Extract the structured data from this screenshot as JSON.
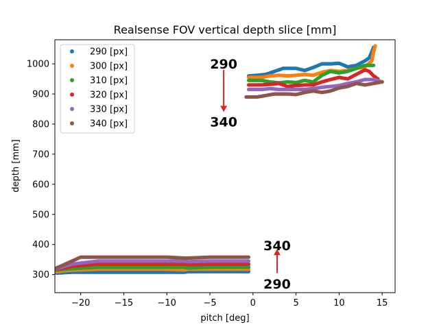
{
  "chart_data": {
    "type": "scatter",
    "title": "Realsense FOV vertical depth slice [mm]",
    "xlabel": "pitch [deg]",
    "ylabel": "depth [mm]",
    "xlim": [
      -23,
      16.5
    ],
    "ylim": [
      240,
      1080
    ],
    "xticks": [
      -20,
      -15,
      -10,
      -5,
      0,
      5,
      10,
      15
    ],
    "xtick_labels": [
      "−20",
      "−15",
      "−10",
      "−5",
      "0",
      "5",
      "10",
      "15"
    ],
    "yticks": [
      300,
      400,
      500,
      600,
      700,
      800,
      900,
      1000
    ],
    "grid": false,
    "legend": "top-left",
    "series": [
      {
        "name": "290 [px]",
        "color": "#1f77b4",
        "segments": [
          [
            [
              -22.8,
              305
            ],
            [
              -21,
              308
            ],
            [
              -18,
              308
            ],
            [
              -15,
              308
            ],
            [
              -12,
              308
            ],
            [
              -10,
              308
            ],
            [
              -8,
              308
            ],
            [
              -7.5,
              310
            ],
            [
              -5,
              310
            ],
            [
              -3,
              310
            ],
            [
              -0.5,
              310
            ]
          ],
          [
            [
              -0.5,
              960
            ],
            [
              0.5,
              962
            ],
            [
              1.5,
              965
            ],
            [
              2.5,
              975
            ],
            [
              3.5,
              985
            ],
            [
              5,
              985
            ],
            [
              6,
              978
            ],
            [
              7,
              988
            ],
            [
              8,
              1000
            ],
            [
              9,
              1000
            ],
            [
              10,
              1002
            ],
            [
              11,
              990
            ],
            [
              12,
              995
            ],
            [
              13,
              1010
            ],
            [
              13.5,
              1020
            ],
            [
              13.8,
              1040
            ],
            [
              14,
              1055
            ]
          ]
        ]
      },
      {
        "name": "300 [px]",
        "color": "#ff7f0e",
        "segments": [
          [
            [
              -22.8,
              310
            ],
            [
              -21,
              315
            ],
            [
              -18,
              318
            ],
            [
              -15,
              318
            ],
            [
              -12,
              318
            ],
            [
              -10,
              318
            ],
            [
              -8,
              316
            ],
            [
              -7.5,
              318
            ],
            [
              -5,
              318
            ],
            [
              -3,
              318
            ],
            [
              -0.5,
              318
            ]
          ],
          [
            [
              -0.5,
              955
            ],
            [
              1,
              955
            ],
            [
              2,
              960
            ],
            [
              3,
              962
            ],
            [
              4,
              960
            ],
            [
              5,
              962
            ],
            [
              6,
              965
            ],
            [
              7,
              962
            ],
            [
              8,
              972
            ],
            [
              9,
              978
            ],
            [
              10,
              975
            ],
            [
              11,
              978
            ],
            [
              12,
              985
            ],
            [
              13,
              990
            ],
            [
              13.8,
              1010
            ],
            [
              14,
              1040
            ],
            [
              14.2,
              1060
            ]
          ]
        ]
      },
      {
        "name": "310 [px]",
        "color": "#2ca02c",
        "segments": [
          [
            [
              -22.8,
              315
            ],
            [
              -21,
              320
            ],
            [
              -18,
              325
            ],
            [
              -15,
              325
            ],
            [
              -12,
              325
            ],
            [
              -10,
              325
            ],
            [
              -8,
              325
            ],
            [
              -7.5,
              322
            ],
            [
              -5,
              325
            ],
            [
              -3,
              325
            ],
            [
              -0.5,
              325
            ]
          ],
          [
            [
              -0.5,
              945
            ],
            [
              1,
              945
            ],
            [
              2,
              940
            ],
            [
              3,
              937
            ],
            [
              4,
              940
            ],
            [
              5,
              938
            ],
            [
              6,
              945
            ],
            [
              7,
              940
            ],
            [
              8,
              962
            ],
            [
              9,
              975
            ],
            [
              10,
              970
            ],
            [
              11,
              975
            ],
            [
              12,
              985
            ],
            [
              13,
              995
            ],
            [
              14,
              995
            ]
          ]
        ]
      },
      {
        "name": "320 [px]",
        "color": "#d62728",
        "segments": [
          [
            [
              -22.8,
              318
            ],
            [
              -21,
              328
            ],
            [
              -18,
              335
            ],
            [
              -15,
              335
            ],
            [
              -12,
              335
            ],
            [
              -10,
              335
            ],
            [
              -8,
              335
            ],
            [
              -7.5,
              333
            ],
            [
              -5,
              335
            ],
            [
              -3,
              335
            ],
            [
              -0.5,
              335
            ]
          ],
          [
            [
              -0.5,
              930
            ],
            [
              1,
              930
            ],
            [
              2,
              932
            ],
            [
              3,
              935
            ],
            [
              4,
              925
            ],
            [
              5,
              928
            ],
            [
              6,
              930
            ],
            [
              7,
              930
            ],
            [
              8,
              940
            ],
            [
              9,
              948
            ],
            [
              10,
              955
            ],
            [
              11,
              950
            ],
            [
              12,
              965
            ],
            [
              13,
              980
            ],
            [
              13.5,
              975
            ],
            [
              14,
              960
            ],
            [
              14.5,
              950
            ]
          ]
        ]
      },
      {
        "name": "330 [px]",
        "color": "#9467bd",
        "segments": [
          [
            [
              -22.8,
              320
            ],
            [
              -21,
              335
            ],
            [
              -18,
              345
            ],
            [
              -15,
              345
            ],
            [
              -12,
              345
            ],
            [
              -10,
              345
            ],
            [
              -8,
              345
            ],
            [
              -7.5,
              343
            ],
            [
              -5,
              345
            ],
            [
              -3,
              345
            ],
            [
              -0.5,
              345
            ]
          ],
          [
            [
              -0.5,
              915
            ],
            [
              1,
              915
            ],
            [
              2,
              918
            ],
            [
              3,
              915
            ],
            [
              4,
              915
            ],
            [
              5,
              915
            ],
            [
              6,
              915
            ],
            [
              7,
              918
            ],
            [
              8,
              922
            ],
            [
              9,
              925
            ],
            [
              10,
              928
            ],
            [
              11,
              935
            ],
            [
              12,
              940
            ],
            [
              13,
              948
            ],
            [
              14,
              948
            ],
            [
              15,
              940
            ]
          ]
        ]
      },
      {
        "name": "340 [px]",
        "color": "#8c564b",
        "segments": [
          [
            [
              -22.8,
              322
            ],
            [
              -21,
              345
            ],
            [
              -20,
              358
            ],
            [
              -18,
              358
            ],
            [
              -15,
              358
            ],
            [
              -12,
              358
            ],
            [
              -10,
              358
            ],
            [
              -8,
              355
            ],
            [
              -7.5,
              355
            ],
            [
              -5,
              358
            ],
            [
              -3,
              358
            ],
            [
              -0.5,
              358
            ]
          ],
          [
            [
              -0.8,
              890
            ],
            [
              0.5,
              890
            ],
            [
              1.5,
              895
            ],
            [
              2.5,
              900
            ],
            [
              4,
              900
            ],
            [
              5,
              898
            ],
            [
              6,
              905
            ],
            [
              7,
              910
            ],
            [
              8,
              905
            ],
            [
              9,
              910
            ],
            [
              10,
              920
            ],
            [
              11,
              925
            ],
            [
              12,
              935
            ],
            [
              13,
              930
            ],
            [
              14,
              935
            ],
            [
              15,
              940
            ]
          ]
        ]
      }
    ],
    "annotations": [
      {
        "text": "290",
        "x": -3.4,
        "y": 1000
      },
      {
        "text": "340",
        "x": -3.4,
        "y": 808
      },
      {
        "text": "340",
        "x": 2.8,
        "y": 397
      },
      {
        "text": "290",
        "x": 2.8,
        "y": 270
      }
    ],
    "arrows": [
      {
        "from": [
          -3.4,
          980
        ],
        "to": [
          -3.4,
          840
        ],
        "color": "#d62728"
      },
      {
        "from": [
          2.8,
          305
        ],
        "to": [
          2.8,
          385
        ],
        "color": "#d62728"
      }
    ]
  }
}
